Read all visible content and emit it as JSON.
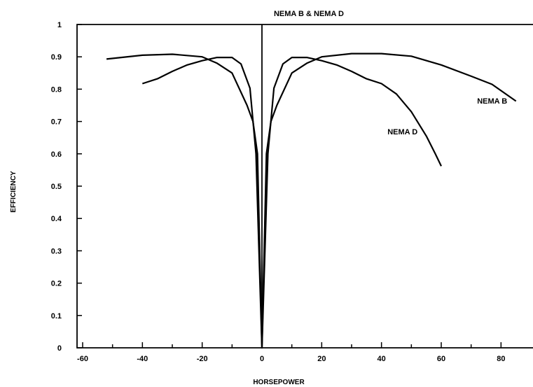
{
  "chart_data": {
    "type": "line",
    "title": "NEMA B & NEMA D",
    "xlabel": "HORSEPOWER",
    "ylabel": "EFFICIENCY",
    "xlim": [
      -60,
      85
    ],
    "ylim": [
      0,
      1
    ],
    "xticks": [
      -60,
      -40,
      -20,
      0,
      20,
      40,
      60,
      80
    ],
    "yticks": [
      0,
      0.1,
      0.2,
      0.3,
      0.4,
      0.5,
      0.6,
      0.7,
      0.8,
      0.9,
      1
    ],
    "grid": false,
    "series": [
      {
        "name": "NEMA B",
        "x": [
          -52,
          -40,
          -30,
          -20,
          -15,
          -10,
          -5,
          -3,
          -1.5,
          0,
          1.5,
          3,
          5,
          10,
          15,
          20,
          30,
          40,
          50,
          60,
          70,
          77,
          85
        ],
        "y": [
          0.893,
          0.905,
          0.908,
          0.9,
          0.88,
          0.85,
          0.75,
          0.7,
          0.6,
          0,
          0.6,
          0.7,
          0.75,
          0.85,
          0.88,
          0.9,
          0.91,
          0.91,
          0.902,
          0.875,
          0.84,
          0.815,
          0.763
        ]
      },
      {
        "name": "NEMA D",
        "x": [
          -40,
          -35,
          -30,
          -25,
          -20,
          -15,
          -10,
          -7,
          -4,
          -2,
          0,
          2,
          4,
          7,
          10,
          15,
          20,
          25,
          30,
          35,
          40,
          45,
          50,
          55,
          58,
          60
        ],
        "y": [
          0.817,
          0.832,
          0.855,
          0.875,
          0.888,
          0.898,
          0.898,
          0.878,
          0.803,
          0.6,
          0,
          0.6,
          0.803,
          0.878,
          0.898,
          0.898,
          0.888,
          0.875,
          0.855,
          0.832,
          0.817,
          0.785,
          0.73,
          0.655,
          0.6,
          0.562
        ]
      }
    ],
    "annotations": [
      {
        "text": "NEMA B",
        "x": 72,
        "y": 0.755
      },
      {
        "text": "NEMA D",
        "x": 42,
        "y": 0.66
      }
    ]
  }
}
